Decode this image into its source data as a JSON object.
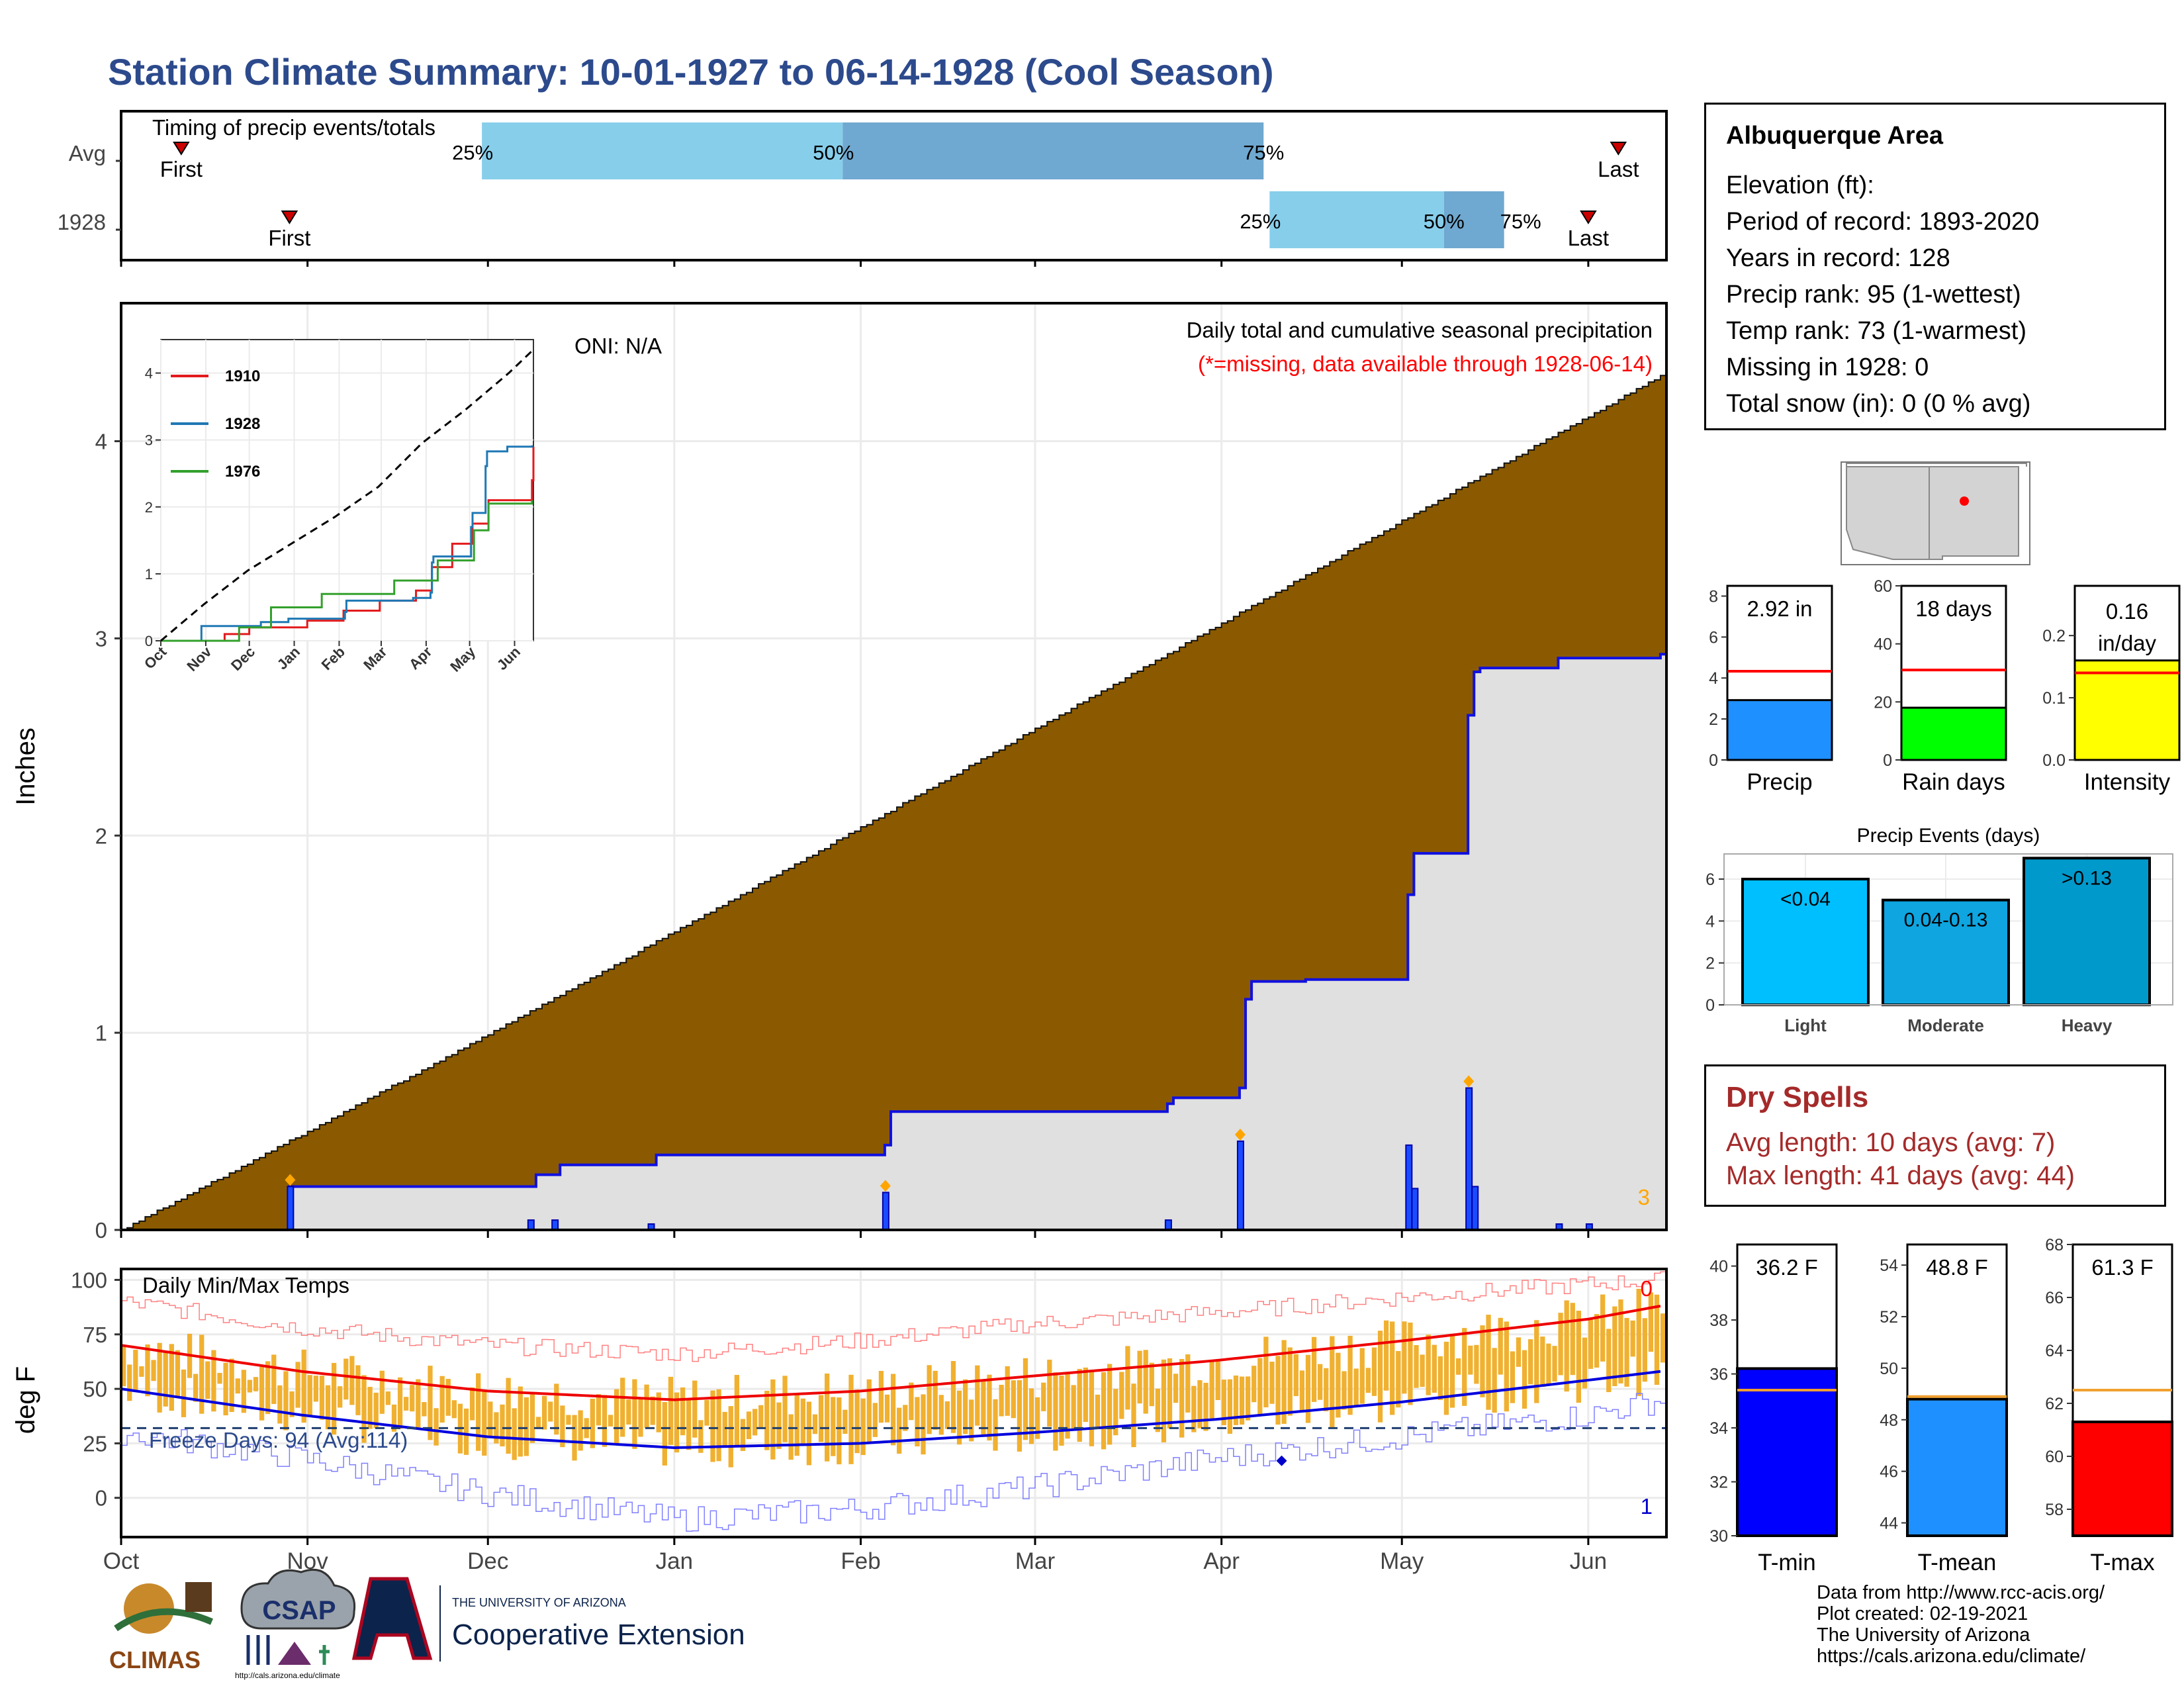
{
  "page": {
    "title": "Station Climate Summary: 10-01-1927 to 06-14-1928 (Cool Season)"
  },
  "timing": {
    "label": "Timing of precip events/totals",
    "rows": [
      {
        "name": "Avg",
        "first_label": "First",
        "last_label": "Last",
        "first_day": 10,
        "last_day": 249,
        "p25_day": 60,
        "p50_day": 120,
        "p75_day": 190,
        "p25": "25%",
        "p50": "50%",
        "p75": "75%"
      },
      {
        "name": "1928",
        "first_label": "First",
        "last_label": "Last",
        "first_day": 28,
        "last_day": 244,
        "p25_day": 191,
        "p50_day": 220,
        "p75_day": 230,
        "p25": "25%",
        "p50": "50%",
        "p75": "75%"
      }
    ]
  },
  "main": {
    "header": "Daily total and cumulative seasonal precipitation",
    "missing_note": "(*=missing, data available through 1928-06-14)",
    "oni": "ONI: N/A",
    "ylabel": "Inches",
    "yticks": [
      "0",
      "1",
      "2",
      "3",
      "4"
    ],
    "corner_value": "3",
    "avg_cum_end": 4.33,
    "cum_1928_end": 2.92
  },
  "inset": {
    "yticks": [
      "0",
      "1",
      "2",
      "3",
      "4"
    ],
    "months": [
      "Oct",
      "Nov",
      "Dec",
      "Jan",
      "Feb",
      "Mar",
      "Apr",
      "May",
      "Jun"
    ],
    "legend": [
      {
        "name": "1910",
        "color": "#e31a1c"
      },
      {
        "name": "1928",
        "color": "#1f78b4"
      },
      {
        "name": "1976",
        "color": "#33a02c"
      }
    ]
  },
  "temps": {
    "label": "Daily Min/Max Temps",
    "ylabel": "deg F",
    "yticks": [
      "0",
      "25",
      "50",
      "75",
      "100"
    ],
    "freeze": "Freeze Days: 94 (Avg:114)",
    "top_count": "0",
    "bottom_count": "1"
  },
  "months": [
    "Oct",
    "Nov",
    "Dec",
    "Jan",
    "Feb",
    "Mar",
    "Apr",
    "May",
    "Jun"
  ],
  "info": {
    "station": "Albuquerque Area",
    "rows": [
      "Elevation (ft):",
      "Period of record: 1893-2020",
      "Years in record: 128",
      "Precip rank: 95 (1-wettest)",
      "Temp rank: 73 (1-warmest)",
      "Missing in 1928: 0",
      "Total snow (in): 0 (0 % avg)"
    ]
  },
  "precip_bars": [
    {
      "label": "Precip",
      "value_text": "2.92 in",
      "value": 2.92,
      "avg": 4.33,
      "ymax": 8.5,
      "yticks": [
        "0",
        "2",
        "4",
        "6",
        "8"
      ],
      "color": "#1e90ff"
    },
    {
      "label": "Rain days",
      "value_text": "18 days",
      "value": 18,
      "avg": 31,
      "ymax": 60,
      "yticks": [
        "0",
        "20",
        "40",
        "60"
      ],
      "color": "#00ff00"
    },
    {
      "label": "Intensity",
      "value_text": "0.16 in/day",
      "value": 0.16,
      "avg": 0.14,
      "ymax": 0.28,
      "yticks": [
        "0.0",
        "0.1",
        "0.2"
      ],
      "color": "#ffff00"
    }
  ],
  "events": {
    "title": "Precip Events (days)",
    "yticks": [
      "0",
      "2",
      "4",
      "6"
    ],
    "bars": [
      {
        "cat": "Light",
        "label": "<0.04",
        "value": 6,
        "color": "#00bfff"
      },
      {
        "cat": "Moderate",
        "label": "0.04-0.13",
        "value": 5,
        "color": "#0ea5e0"
      },
      {
        "cat": "Heavy",
        "label": ">0.13",
        "value": 7,
        "color": "#0099cc"
      }
    ]
  },
  "dry_spells": {
    "title": "Dry Spells",
    "avg": "Avg length: 10 days (avg: 7)",
    "max": "Max length: 41 days (avg: 44)"
  },
  "temp_bars": [
    {
      "label": "T-min",
      "value_text": "36.2 F",
      "value": 36.2,
      "avg": 35.4,
      "ymin": 30,
      "ymax": 40.8,
      "yticks": [
        "30",
        "32",
        "34",
        "36",
        "38",
        "40"
      ],
      "color": "#0000ff"
    },
    {
      "label": "T-mean",
      "value_text": "48.8 F",
      "value": 48.8,
      "avg": 48.9,
      "ymin": 43.5,
      "ymax": 54.8,
      "yticks": [
        "44",
        "46",
        "48",
        "50",
        "52",
        "54"
      ],
      "color": "#1e90ff"
    },
    {
      "label": "T-max",
      "value_text": "61.3 F",
      "value": 61.3,
      "avg": 62.5,
      "ymin": 57,
      "ymax": 68,
      "yticks": [
        "58",
        "60",
        "62",
        "64",
        "66",
        "68"
      ],
      "color": "#ff0000"
    }
  ],
  "logos": {
    "climas": "CLIMAS",
    "csap": "CSAP",
    "csap_url": "http://cals.arizona.edu/climate",
    "ua_top": "THE UNIVERSITY OF ARIZONA",
    "ua_bottom": "Cooperative Extension"
  },
  "credits": [
    "Data from http://www.rcc-acis.org/",
    "Plot created: 02-19-2021",
    "The University of Arizona",
    "https://cals.arizona.edu/climate/"
  ],
  "chart_data": [
    {
      "type": "area",
      "title": "Daily total and cumulative seasonal precipitation",
      "ylabel": "Inches",
      "ylim": [
        0,
        4.7
      ],
      "x_months": [
        "Oct",
        "Nov",
        "Dec",
        "Jan",
        "Feb",
        "Mar",
        "Apr",
        "May",
        "Jun"
      ],
      "series": [
        {
          "name": "1928",
          "points": [
            [
              0,
              0
            ],
            [
              27,
              0
            ],
            [
              28,
              0.22
            ],
            [
              68,
              0.22
            ],
            [
              69,
              0.28
            ],
            [
              72,
              0.28
            ],
            [
              73,
              0.33
            ],
            [
              88,
              0.33
            ],
            [
              89,
              0.38
            ],
            [
              126,
              0.38
            ],
            [
              127,
              0.43
            ],
            [
              128,
              0.6
            ],
            [
              173,
              0.6
            ],
            [
              174,
              0.64
            ],
            [
              175,
              0.67
            ],
            [
              185,
              0.67
            ],
            [
              186,
              0.72
            ],
            [
              187,
              1.17
            ],
            [
              188,
              1.26
            ],
            [
              196,
              1.26
            ],
            [
              197,
              1.27
            ],
            [
              213,
              1.27
            ],
            [
              214,
              1.7
            ],
            [
              215,
              1.91
            ],
            [
              223,
              1.91
            ],
            [
              224,
              2.61
            ],
            [
              225,
              2.83
            ],
            [
              226,
              2.85
            ],
            [
              238,
              2.85
            ],
            [
              239,
              2.9
            ],
            [
              256,
              2.92
            ]
          ]
        }
      ],
      "daily_precip_events": [
        {
          "day": 28,
          "value": 0.22
        },
        {
          "day": 68,
          "value": 0.05
        },
        {
          "day": 72,
          "value": 0.05
        },
        {
          "day": 88,
          "value": 0.03
        },
        {
          "day": 127,
          "value": 0.19
        },
        {
          "day": 174,
          "value": 0.05
        },
        {
          "day": 186,
          "value": 0.45
        },
        {
          "day": 214,
          "value": 0.43
        },
        {
          "day": 215,
          "value": 0.21
        },
        {
          "day": 224,
          "value": 0.72
        },
        {
          "day": 225,
          "value": 0.22
        },
        {
          "day": 239,
          "value": 0.03
        },
        {
          "day": 244,
          "value": 0.03
        }
      ],
      "average_cumulative_end": 4.33
    },
    {
      "type": "line",
      "title": "",
      "ylabel": "Inches",
      "ylim": [
        0,
        4.5
      ],
      "x_months": [
        "Oct",
        "Nov",
        "Dec",
        "Jan",
        "Feb",
        "Mar",
        "Apr",
        "May",
        "Jun"
      ],
      "series": [
        {
          "name": "1910",
          "points": [
            [
              0,
              0
            ],
            [
              43,
              0
            ],
            [
              44,
              0.1
            ],
            [
              60,
              0.1
            ],
            [
              61,
              0.2
            ],
            [
              100,
              0.2
            ],
            [
              101,
              0.3
            ],
            [
              125,
              0.3
            ],
            [
              126,
              0.45
            ],
            [
              150,
              0.45
            ],
            [
              151,
              0.6
            ],
            [
              175,
              0.6
            ],
            [
              176,
              0.75
            ],
            [
              186,
              0.75
            ],
            [
              187,
              1.1
            ],
            [
              200,
              1.1
            ],
            [
              201,
              1.45
            ],
            [
              214,
              1.45
            ],
            [
              215,
              1.75
            ],
            [
              225,
              1.75
            ],
            [
              226,
              2.1
            ],
            [
              256,
              2.4
            ],
            [
              257,
              2.9
            ]
          ]
        },
        {
          "name": "1928",
          "points": [
            [
              0,
              0
            ],
            [
              27,
              0
            ],
            [
              28,
              0.22
            ],
            [
              68,
              0.22
            ],
            [
              69,
              0.28
            ],
            [
              88,
              0.33
            ],
            [
              127,
              0.43
            ],
            [
              128,
              0.6
            ],
            [
              174,
              0.64
            ],
            [
              186,
              0.72
            ],
            [
              187,
              1.17
            ],
            [
              188,
              1.26
            ],
            [
              214,
              1.7
            ],
            [
              215,
              1.91
            ],
            [
              224,
              2.61
            ],
            [
              225,
              2.83
            ],
            [
              239,
              2.9
            ],
            [
              256,
              2.92
            ]
          ]
        },
        {
          "name": "1976",
          "points": [
            [
              0,
              0
            ],
            [
              53,
              0
            ],
            [
              54,
              0.2
            ],
            [
              75,
              0.2
            ],
            [
              76,
              0.5
            ],
            [
              110,
              0.5
            ],
            [
              111,
              0.7
            ],
            [
              160,
              0.7
            ],
            [
              161,
              0.9
            ],
            [
              190,
              0.9
            ],
            [
              191,
              1.2
            ],
            [
              215,
              1.2
            ],
            [
              216,
              1.65
            ],
            [
              225,
              1.65
            ],
            [
              226,
              2.05
            ],
            [
              256,
              2.1
            ]
          ]
        },
        {
          "name": "Average",
          "style": "dashed",
          "points": [
            [
              0,
              0
            ],
            [
              30,
              0.55
            ],
            [
              60,
              1.05
            ],
            [
              90,
              1.45
            ],
            [
              120,
              1.85
            ],
            [
              150,
              2.3
            ],
            [
              180,
              2.95
            ],
            [
              210,
              3.45
            ],
            [
              240,
              4.0
            ],
            [
              256,
              4.33
            ]
          ]
        }
      ]
    },
    {
      "type": "bar",
      "title": "Daily Min/Max Temps",
      "ylabel": "deg F",
      "ylim": [
        -18,
        105
      ],
      "freeze_line": 32,
      "series": [
        {
          "name": "Normal max",
          "points": [
            [
              0,
              70
            ],
            [
              30,
              58
            ],
            [
              61,
              49
            ],
            [
              92,
              45
            ],
            [
              123,
              49
            ],
            [
              152,
              56
            ],
            [
              182,
              63
            ],
            [
              213,
              72
            ],
            [
              244,
              82
            ],
            [
              256,
              88
            ]
          ]
        },
        {
          "name": "Normal min",
          "points": [
            [
              0,
              50
            ],
            [
              30,
              38
            ],
            [
              61,
              28
            ],
            [
              92,
              23
            ],
            [
              123,
              25
            ],
            [
              152,
              30
            ],
            [
              182,
              36
            ],
            [
              213,
              44
            ],
            [
              244,
              54
            ],
            [
              256,
              58
            ]
          ]
        },
        {
          "name": "Record max",
          "points": [
            [
              0,
              90
            ],
            [
              30,
              78
            ],
            [
              61,
              70
            ],
            [
              92,
              66
            ],
            [
              123,
              72
            ],
            [
              152,
              80
            ],
            [
              182,
              85
            ],
            [
              213,
              92
            ],
            [
              244,
              98
            ],
            [
              256,
              100
            ]
          ]
        },
        {
          "name": "Record min",
          "points": [
            [
              0,
              30
            ],
            [
              30,
              18
            ],
            [
              61,
              2
            ],
            [
              92,
              -10
            ],
            [
              123,
              -5
            ],
            [
              152,
              5
            ],
            [
              182,
              18
            ],
            [
              213,
              28
            ],
            [
              244,
              38
            ],
            [
              256,
              45
            ]
          ]
        }
      ]
    },
    {
      "type": "bar",
      "categories": [
        "Precip",
        "Rain days",
        "Intensity"
      ],
      "values": [
        2.92,
        18,
        0.16
      ],
      "averages": [
        4.33,
        31,
        0.14
      ]
    },
    {
      "type": "bar",
      "title": "Precip Events (days)",
      "categories": [
        "Light",
        "Moderate",
        "Heavy"
      ],
      "values": [
        6,
        5,
        7
      ]
    },
    {
      "type": "bar",
      "categories": [
        "T-min",
        "T-mean",
        "T-max"
      ],
      "values": [
        36.2,
        48.8,
        61.3
      ],
      "averages": [
        35.4,
        48.9,
        62.5
      ]
    }
  ]
}
